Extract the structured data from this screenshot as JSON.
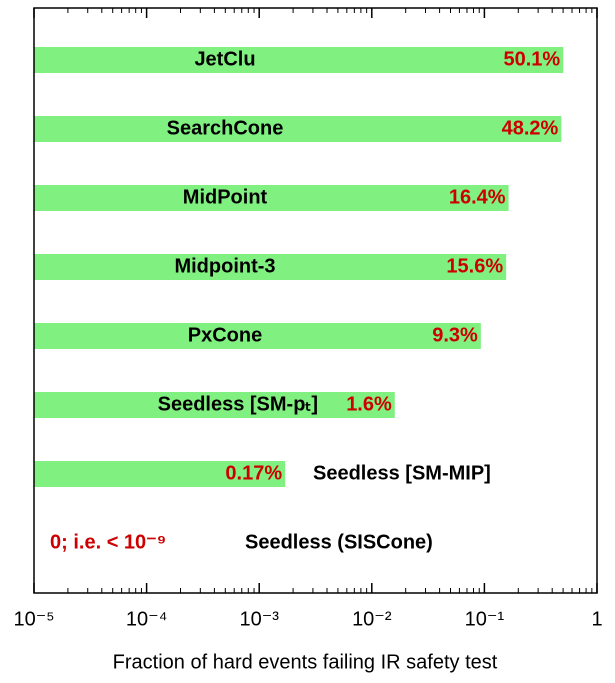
{
  "chart_data": {
    "type": "bar",
    "orientation": "horizontal",
    "x_label": "Fraction of hard events failing IR safety test",
    "categories": [
      "JetClu",
      "SearchCone",
      "MidPoint",
      "Midpoint-3",
      "PxCone",
      "Seedless [SM-pₜ]",
      "Seedless [SM-MIP]",
      "Seedless (SISCone)"
    ],
    "values": [
      0.501,
      0.482,
      0.164,
      0.156,
      0.093,
      0.016,
      0.0017,
      0
    ],
    "value_labels": [
      "50.1%",
      "48.2%",
      "16.4%",
      "15.6%",
      "9.3%",
      "1.6%",
      "0.17%",
      "0; i.e. < 10⁻⁹"
    ],
    "color": "#80f080",
    "label_color": "#cc0000",
    "log_x": true,
    "xlim": [
      1e-05,
      1
    ],
    "xticks": [
      {
        "value": 1e-05,
        "label": "10⁻⁵"
      },
      {
        "value": 0.0001,
        "label": "10⁻⁴"
      },
      {
        "value": 0.001,
        "label": "10⁻³"
      },
      {
        "value": 0.01,
        "label": "10⁻²"
      },
      {
        "value": 0.1,
        "label": "10⁻¹"
      },
      1
    ]
  }
}
